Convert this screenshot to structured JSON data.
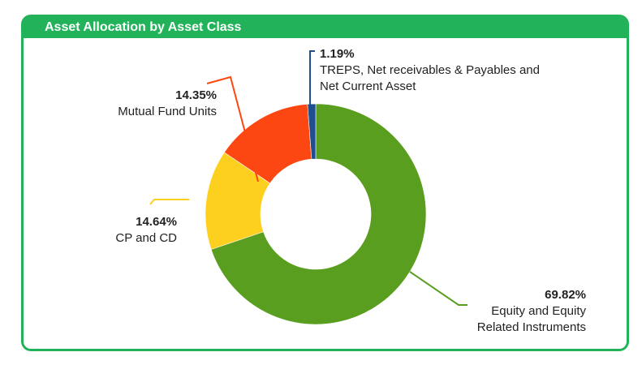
{
  "header": {
    "title": "Asset Allocation by Asset Class"
  },
  "colors": {
    "frame": "#22b35a",
    "title_text": "#ffffff"
  },
  "chart_data": {
    "type": "pie",
    "title": "Asset Allocation by Asset Class",
    "donut": true,
    "slices": [
      {
        "name": "Equity and Equity Related Instruments",
        "value": 69.82,
        "label": "69.82%",
        "lines": [
          "Equity and Equity",
          "Related Instruments"
        ],
        "color": "#5a9e1f"
      },
      {
        "name": "CP and CD",
        "value": 14.64,
        "label": "14.64%",
        "lines": [
          "CP and CD"
        ],
        "color": "#fdd01f"
      },
      {
        "name": "Mutual Fund Units",
        "value": 14.35,
        "label": "14.35%",
        "lines": [
          "Mutual Fund Units"
        ],
        "color": "#fd4713"
      },
      {
        "name": "TREPS, Net receivables & Payables and Net Current Asset",
        "value": 1.19,
        "label": "1.19%",
        "lines": [
          "TREPS, Net receivables & Payables and",
          "Net Current Asset"
        ],
        "color": "#1f4f8f"
      }
    ]
  }
}
